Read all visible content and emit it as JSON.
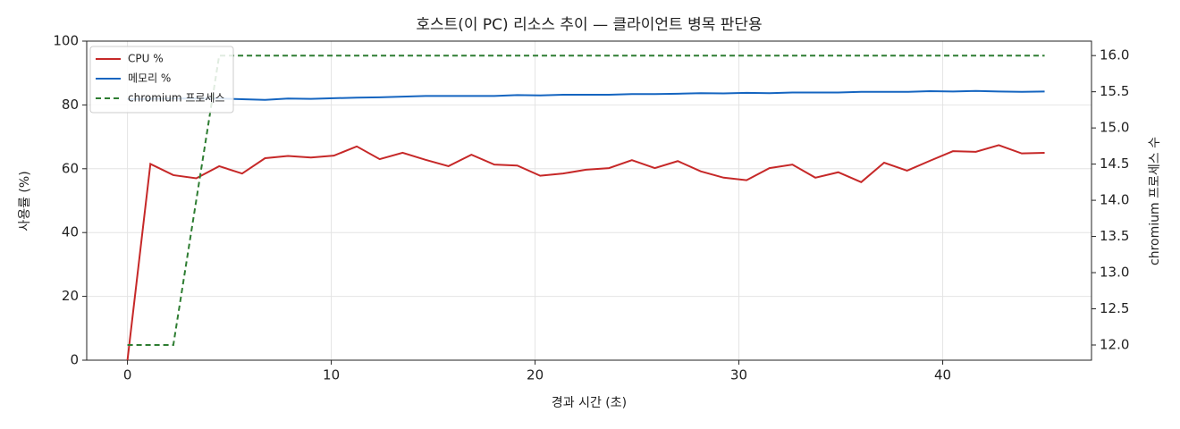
{
  "chart_data": {
    "type": "line",
    "title": "호스트(이 PC) 리소스 추이 — 클라이언트 병목 판단용",
    "x_label": "경과 시간 (초)",
    "y_label": "사용률 (%)",
    "y2_label": "chromium 프로세스 수",
    "x": [
      0,
      1.125,
      2.25,
      3.375,
      4.5,
      5.625,
      6.75,
      7.875,
      9,
      10.125,
      11.25,
      12.375,
      13.5,
      14.625,
      15.75,
      16.875,
      18,
      19.125,
      20.25,
      21.375,
      22.5,
      23.625,
      24.75,
      25.875,
      27,
      28.125,
      29.25,
      30.375,
      31.5,
      32.625,
      33.75,
      34.875,
      36,
      37.125,
      38.25,
      39.375,
      40.5,
      41.625,
      42.75,
      43.875,
      45
    ],
    "series": [
      {
        "name": "CPU %",
        "color": "#c62828",
        "linestyle": "solid",
        "values": [
          0,
          61.5,
          58,
          57,
          60.8,
          58.5,
          63.3,
          64,
          63.5,
          64.1,
          67,
          63,
          65,
          62.8,
          60.8,
          64.4,
          61.3,
          61,
          57.8,
          58.5,
          59.7,
          60.2,
          62.7,
          60.2,
          62.4,
          59.2,
          57.2,
          56.4,
          60.2,
          61.3,
          57.2,
          58.9,
          55.8,
          61.9,
          59.4,
          62.5,
          65.5,
          65.3,
          67.4,
          64.8,
          65
        ]
      },
      {
        "name": "메모리 %",
        "color": "#1565c0",
        "linestyle": "solid",
        "values": [
          81.8,
          81.9,
          82,
          82,
          82,
          81.8,
          81.6,
          82,
          81.9,
          82.1,
          82.3,
          82.4,
          82.6,
          82.8,
          82.8,
          82.8,
          82.8,
          83.1,
          83,
          83.2,
          83.2,
          83.2,
          83.4,
          83.4,
          83.5,
          83.7,
          83.6,
          83.8,
          83.7,
          83.9,
          83.9,
          83.9,
          84.1,
          84.1,
          84.1,
          84.3,
          84.2,
          84.4,
          84.2,
          84.1,
          84.2
        ]
      },
      {
        "name": "chromium 프로세스",
        "color": "#2e7d32",
        "linestyle": "dashed",
        "axis": "y2",
        "values": [
          12,
          12,
          12,
          14,
          16,
          16,
          16,
          16,
          16,
          16,
          16,
          16,
          16,
          16,
          16,
          16,
          16,
          16,
          16,
          16,
          16,
          16,
          16,
          16,
          16,
          16,
          16,
          16,
          16,
          16,
          16,
          16,
          16,
          16,
          16,
          16,
          16,
          16,
          16,
          16,
          16
        ]
      }
    ],
    "xlim": [
      -2.0,
      47.3
    ],
    "xticks": [
      0,
      10,
      20,
      30,
      40
    ],
    "ylim": [
      0,
      100
    ],
    "yticks": [
      0,
      20,
      40,
      60,
      80,
      100
    ],
    "y2lim": [
      11.79,
      16.2
    ],
    "y2ticks": [
      {
        "value": 12,
        "label": "12.0"
      },
      {
        "value": 12.5,
        "label": "12.5"
      },
      {
        "value": 13,
        "label": "13.0"
      },
      {
        "value": 13.5,
        "label": "13.5"
      },
      {
        "value": 14,
        "label": "14.0"
      },
      {
        "value": 14.5,
        "label": "14.5"
      },
      {
        "value": 15,
        "label": "15.0"
      },
      {
        "value": 15.5,
        "label": "15.5"
      },
      {
        "value": 16,
        "label": "16.0"
      }
    ],
    "grid": true,
    "legend": "upper-left"
  }
}
